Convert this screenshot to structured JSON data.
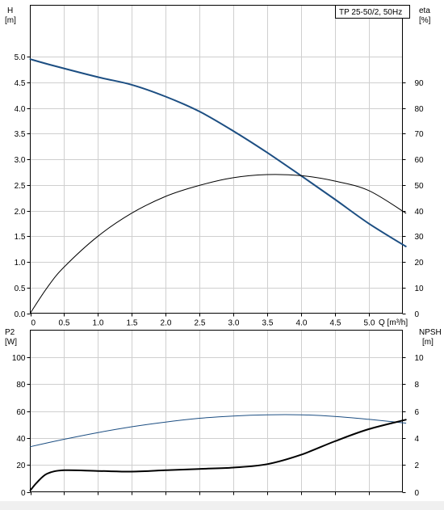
{
  "chart_data": [
    {
      "type": "line",
      "title": "TP 25-50/2, 50Hz",
      "xlabel": "Q [m³/h]",
      "x_ticks": [
        0,
        0.5,
        1.0,
        1.5,
        2.0,
        2.5,
        3.0,
        3.5,
        4.0,
        4.5,
        5.0
      ],
      "x_tick_labels": [
        "0",
        "0.5",
        "1.0",
        "1.5",
        "2.0",
        "2.5",
        "3.0",
        "3.5",
        "4.0",
        "4.5",
        "5.0"
      ],
      "xlim": [
        0,
        5.5
      ],
      "left_axis": {
        "label_line1": "H",
        "label_line2": "[m]",
        "ylim": [
          0,
          6.0
        ],
        "ticks": [
          0,
          0.5,
          1.0,
          1.5,
          2.0,
          2.5,
          3.0,
          3.5,
          4.0,
          4.5,
          5.0
        ],
        "tick_labels": [
          "0.0",
          "0.5",
          "1.0",
          "1.5",
          "2.0",
          "2.5",
          "3.0",
          "3.5",
          "4.0",
          "4.5",
          "5.0"
        ]
      },
      "right_axis": {
        "label_line1": "eta",
        "label_line2": "[%]",
        "ylim": [
          0,
          120
        ],
        "ticks": [
          0,
          10,
          20,
          30,
          40,
          50,
          60,
          70,
          80,
          90
        ],
        "tick_labels": [
          "0",
          "10",
          "20",
          "30",
          "40",
          "50",
          "60",
          "70",
          "80",
          "90"
        ]
      },
      "grid": true,
      "series": [
        {
          "axis": "left",
          "color": "#1c4e82",
          "x": [
            0,
            0.35,
            1.0,
            1.5,
            2.0,
            2.5,
            3.0,
            3.5,
            4.0,
            4.5,
            5.0,
            5.55
          ],
          "y": [
            4.95,
            4.82,
            4.6,
            4.45,
            4.22,
            3.93,
            3.55,
            3.13,
            2.68,
            2.22,
            1.75,
            1.3
          ]
        },
        {
          "axis": "right",
          "color": "#000000",
          "x": [
            0,
            0.25,
            0.5,
            1.0,
            1.5,
            2.0,
            2.5,
            3.0,
            3.5,
            4.0,
            4.5,
            5.0,
            5.55
          ],
          "y": [
            0,
            10,
            18,
            30,
            39,
            45.5,
            49.8,
            52.8,
            54,
            53.6,
            51.5,
            47.8,
            39
          ]
        }
      ]
    },
    {
      "type": "line",
      "x_ticks": [
        0,
        0.5,
        1.0,
        1.5,
        2.0,
        2.5,
        3.0,
        3.5,
        4.0,
        4.5,
        5.0
      ],
      "xlim": [
        0,
        5.5
      ],
      "left_axis": {
        "label_line1": "P2",
        "label_line2": "[W]",
        "ylim": [
          0,
          120
        ],
        "ticks": [
          0,
          20,
          40,
          60,
          80,
          100
        ],
        "tick_labels": [
          "0",
          "20",
          "40",
          "60",
          "80",
          "100"
        ]
      },
      "right_axis": {
        "label_line1": "NPSH",
        "label_line2": "[m]",
        "ylim": [
          0,
          12
        ],
        "ticks": [
          0,
          2,
          4,
          6,
          8,
          10
        ],
        "tick_labels": [
          "0",
          "2",
          "4",
          "6",
          "8",
          "10"
        ]
      },
      "grid": true,
      "series": [
        {
          "axis": "left",
          "color": "#1c4e82",
          "x": [
            0,
            0.5,
            1.0,
            1.5,
            2.0,
            2.5,
            3.0,
            3.5,
            4.0,
            4.5,
            5.0,
            5.55
          ],
          "y": [
            33.5,
            39,
            44,
            48.3,
            51.8,
            54.6,
            56.3,
            57.2,
            57.2,
            56,
            53.8,
            51
          ]
        },
        {
          "axis": "right",
          "color": "#000000",
          "x": [
            0,
            0.1,
            0.25,
            0.5,
            1.0,
            1.5,
            2.0,
            2.5,
            3.0,
            3.5,
            4.0,
            4.5,
            5.0,
            5.55
          ],
          "y": [
            0.1,
            0.7,
            1.35,
            1.6,
            1.55,
            1.5,
            1.6,
            1.7,
            1.8,
            2.05,
            2.75,
            3.75,
            4.65,
            5.35
          ]
        }
      ]
    }
  ]
}
